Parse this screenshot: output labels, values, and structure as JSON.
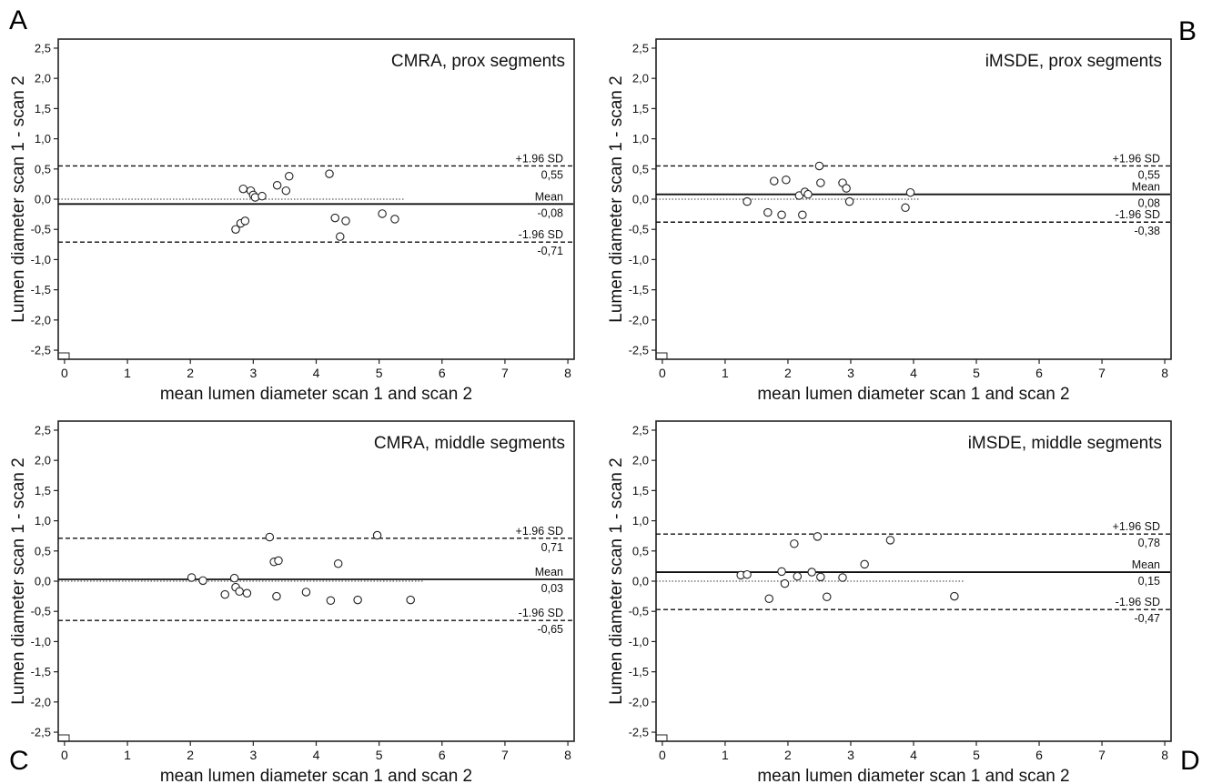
{
  "panel_letters": [
    "A",
    "B",
    "C",
    "D"
  ],
  "chart_data": [
    {
      "type": "scatter",
      "panel": "A",
      "annotation": "CMRA, prox segments",
      "xlabel": "mean lumen diameter scan 1 and scan 2",
      "ylabel": "Lumen diameter scan 1 - scan 2",
      "xlim": [
        -0.1,
        8.1
      ],
      "ylim": [
        -2.65,
        2.65
      ],
      "xticks": [
        0,
        1,
        2,
        3,
        4,
        5,
        6,
        7,
        8
      ],
      "yticks": [
        2.5,
        2.0,
        1.5,
        1.0,
        0.5,
        0.0,
        -0.5,
        -1.0,
        -1.5,
        -2.0,
        -2.5
      ],
      "ytick_labels": [
        "2,5",
        "2,0",
        "1,5",
        "1,0",
        "0,5",
        "0,0",
        "-0,5",
        "-1,0",
        "-1,5",
        "-2,0",
        "-2,5"
      ],
      "mean": -0.08,
      "upper_loa": 0.55,
      "lower_loa": -0.71,
      "labels": {
        "upper": "+1.96 SD",
        "upper_value": "0,55",
        "mean": "Mean",
        "mean_value": "-0,08",
        "lower": "-1.96 SD",
        "lower_value": "-0,71"
      },
      "zero_line_x_end": 5.4,
      "points": [
        [
          2.72,
          -0.5
        ],
        [
          2.8,
          -0.4
        ],
        [
          2.87,
          -0.36
        ],
        [
          2.84,
          0.17
        ],
        [
          2.96,
          0.14
        ],
        [
          3.0,
          0.07
        ],
        [
          3.03,
          0.03
        ],
        [
          3.14,
          0.05
        ],
        [
          3.38,
          0.23
        ],
        [
          3.52,
          0.14
        ],
        [
          3.57,
          0.38
        ],
        [
          4.21,
          0.42
        ],
        [
          4.3,
          -0.31
        ],
        [
          4.38,
          -0.62
        ],
        [
          4.47,
          -0.36
        ],
        [
          5.05,
          -0.24
        ],
        [
          5.25,
          -0.33
        ]
      ]
    },
    {
      "type": "scatter",
      "panel": "B",
      "annotation": "iMSDE, prox segments",
      "xlabel": "mean lumen diameter scan 1 and scan 2",
      "ylabel": "Lumen diameter scan 1 - scan 2",
      "xlim": [
        -0.1,
        8.1
      ],
      "ylim": [
        -2.65,
        2.65
      ],
      "xticks": [
        0,
        1,
        2,
        3,
        4,
        5,
        6,
        7,
        8
      ],
      "yticks": [
        2.5,
        2.0,
        1.5,
        1.0,
        0.5,
        0.0,
        -0.5,
        -1.0,
        -1.5,
        -2.0,
        -2.5
      ],
      "ytick_labels": [
        "2,5",
        "2,0",
        "1,5",
        "1,0",
        "0,5",
        "0,0",
        "-0,5",
        "-1,0",
        "-1,5",
        "-2,0",
        "-2,5"
      ],
      "mean": 0.08,
      "upper_loa": 0.55,
      "lower_loa": -0.38,
      "labels": {
        "upper": "+1.96 SD",
        "upper_value": "0,55",
        "mean": "Mean",
        "mean_value": "0,08",
        "lower": "-1.96 SD",
        "lower_value": "-0,38"
      },
      "zero_line_x_end": 4.1,
      "points": [
        [
          1.35,
          -0.04
        ],
        [
          1.68,
          -0.22
        ],
        [
          1.78,
          0.3
        ],
        [
          1.9,
          -0.26
        ],
        [
          1.97,
          0.32
        ],
        [
          2.18,
          0.06
        ],
        [
          2.23,
          -0.26
        ],
        [
          2.27,
          0.12
        ],
        [
          2.32,
          0.08
        ],
        [
          2.5,
          0.55
        ],
        [
          2.52,
          0.27
        ],
        [
          2.87,
          0.27
        ],
        [
          2.93,
          0.18
        ],
        [
          2.98,
          -0.04
        ],
        [
          3.87,
          -0.14
        ],
        [
          3.95,
          0.11
        ]
      ]
    },
    {
      "type": "scatter",
      "panel": "C",
      "annotation": "CMRA, middle segments",
      "xlabel": "mean lumen diameter scan 1 and scan 2",
      "ylabel": "Lumen diameter scan 1 - scan 2",
      "xlim": [
        -0.1,
        8.1
      ],
      "ylim": [
        -2.65,
        2.65
      ],
      "xticks": [
        0,
        1,
        2,
        3,
        4,
        5,
        6,
        7,
        8
      ],
      "yticks": [
        2.5,
        2.0,
        1.5,
        1.0,
        0.5,
        0.0,
        -0.5,
        -1.0,
        -1.5,
        -2.0,
        -2.5
      ],
      "ytick_labels": [
        "2,5",
        "2,0",
        "1,5",
        "1,0",
        "0,5",
        "0,0",
        "-0,5",
        "-1,0",
        "-1,5",
        "-2,0",
        "-2,5"
      ],
      "mean": 0.03,
      "upper_loa": 0.71,
      "lower_loa": -0.65,
      "labels": {
        "upper": "+1.96 SD",
        "upper_value": "0,71",
        "mean": "Mean",
        "mean_value": "0,03",
        "lower": "-1.96 SD",
        "lower_value": "-0,65"
      },
      "zero_line_x_end": 5.7,
      "points": [
        [
          2.02,
          0.06
        ],
        [
          2.2,
          0.01
        ],
        [
          2.55,
          -0.22
        ],
        [
          2.7,
          0.05
        ],
        [
          2.72,
          -0.1
        ],
        [
          2.78,
          -0.17
        ],
        [
          2.9,
          -0.2
        ],
        [
          3.26,
          0.73
        ],
        [
          3.33,
          0.32
        ],
        [
          3.4,
          0.34
        ],
        [
          3.37,
          -0.25
        ],
        [
          3.84,
          -0.18
        ],
        [
          4.23,
          -0.32
        ],
        [
          4.35,
          0.29
        ],
        [
          4.66,
          -0.31
        ],
        [
          4.97,
          0.76
        ],
        [
          5.5,
          -0.31
        ]
      ]
    },
    {
      "type": "scatter",
      "panel": "D",
      "annotation": "iMSDE, middle segments",
      "xlabel": "mean lumen diameter scan 1 and scan 2",
      "ylabel": "Lumen diameter scan 1 - scan 2",
      "xlim": [
        -0.1,
        8.1
      ],
      "ylim": [
        -2.65,
        2.65
      ],
      "xticks": [
        0,
        1,
        2,
        3,
        4,
        5,
        6,
        7,
        8
      ],
      "yticks": [
        2.5,
        2.0,
        1.5,
        1.0,
        0.5,
        0.0,
        -0.5,
        -1.0,
        -1.5,
        -2.0,
        -2.5
      ],
      "ytick_labels": [
        "2,5",
        "2,0",
        "1,5",
        "1,0",
        "0,5",
        "0,0",
        "-0,5",
        "-1,0",
        "-1,5",
        "-2,0",
        "-2,5"
      ],
      "mean": 0.15,
      "upper_loa": 0.78,
      "lower_loa": -0.47,
      "labels": {
        "upper": "+1.96 SD",
        "upper_value": "0,78",
        "mean": "Mean",
        "mean_value": "0,15",
        "lower": "-1.96 SD",
        "lower_value": "-0,47"
      },
      "zero_line_x_end": 4.8,
      "points": [
        [
          1.25,
          0.1
        ],
        [
          1.35,
          0.11
        ],
        [
          1.7,
          -0.29
        ],
        [
          1.9,
          0.16
        ],
        [
          1.95,
          -0.04
        ],
        [
          2.1,
          0.62
        ],
        [
          2.15,
          0.08
        ],
        [
          2.38,
          0.15
        ],
        [
          2.47,
          0.74
        ],
        [
          2.52,
          0.07
        ],
        [
          2.62,
          -0.26
        ],
        [
          2.87,
          0.06
        ],
        [
          3.22,
          0.28
        ],
        [
          3.63,
          0.68
        ],
        [
          4.65,
          -0.25
        ]
      ]
    }
  ]
}
